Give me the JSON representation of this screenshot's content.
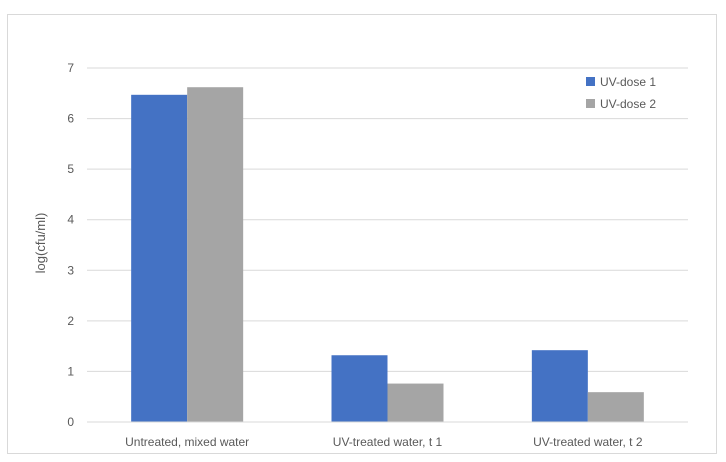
{
  "chart_data": {
    "type": "bar",
    "categories": [
      "Untreated, mixed water",
      "UV-treated water, t 1",
      "UV-treated water, t 2"
    ],
    "series": [
      {
        "name": "UV-dose 1",
        "values": [
          6.47,
          1.32,
          1.42
        ],
        "color": "#4472c4"
      },
      {
        "name": "UV-dose 2",
        "values": [
          6.62,
          0.76,
          0.59
        ],
        "color": "#a5a5a5"
      }
    ],
    "title": "",
    "xlabel": "",
    "ylabel": "log(cfu/ml)",
    "ylim": [
      0,
      7
    ],
    "yticks": [
      "0",
      "1",
      "2",
      "3",
      "4",
      "5",
      "6",
      "7"
    ],
    "grid": true,
    "legend_position": "top-right"
  }
}
